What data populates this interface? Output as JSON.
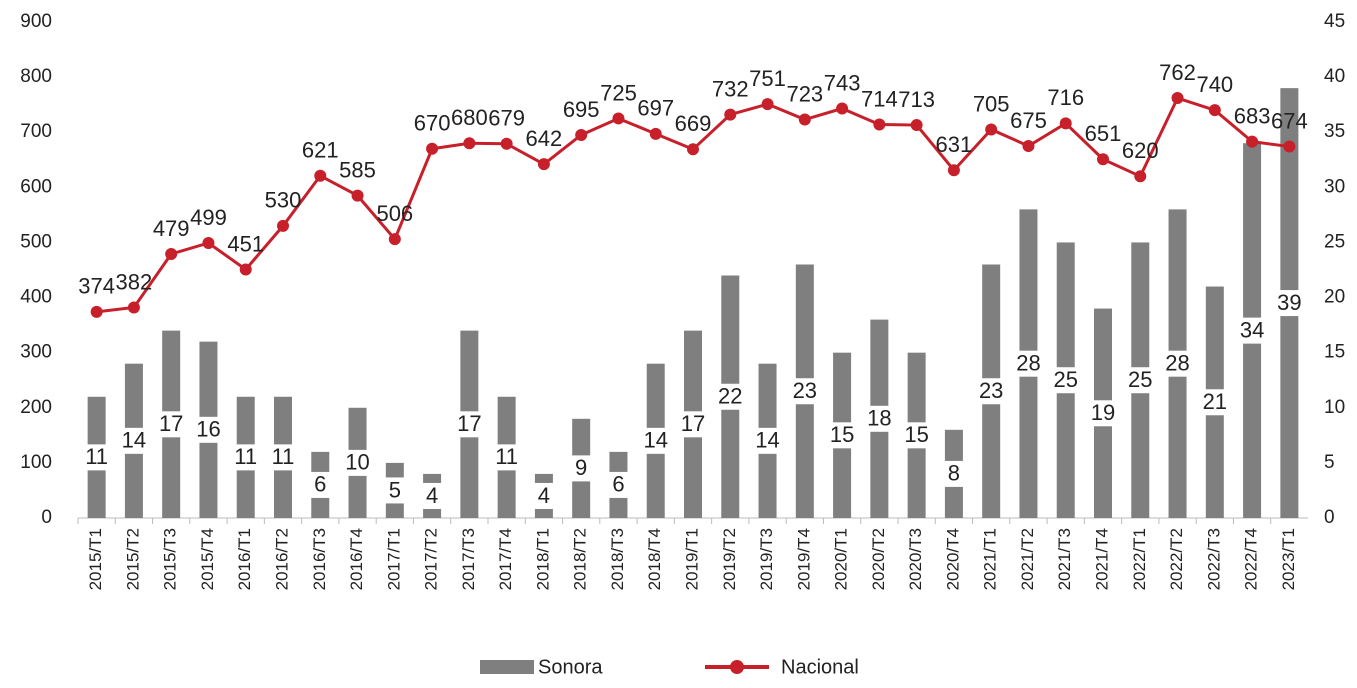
{
  "chart_data": {
    "type": "combo",
    "categories": [
      "2015/T1",
      "2015/T2",
      "2015/T3",
      "2015/T4",
      "2016/T1",
      "2016/T2",
      "2016/T3",
      "2016/T4",
      "2017/T1",
      "2017/T2",
      "2017/T3",
      "2017/T4",
      "2018/T1",
      "2018/T2",
      "2018/T3",
      "2018/T4",
      "2019/T1",
      "2019/T2",
      "2019/T3",
      "2019/T4",
      "2020/T1",
      "2020/T2",
      "2020/T3",
      "2020/T4",
      "2021/T1",
      "2021/T2",
      "2021/T3",
      "2021/T4",
      "2022/T1",
      "2022/T2",
      "2022/T3",
      "2022/T4",
      "2023/T1"
    ],
    "series": [
      {
        "name": "Sonora",
        "type": "bar",
        "axis": "y2",
        "color": "#7f7f7f",
        "values": [
          11,
          14,
          17,
          16,
          11,
          11,
          6,
          10,
          5,
          4,
          17,
          11,
          4,
          9,
          6,
          14,
          17,
          22,
          14,
          23,
          15,
          18,
          15,
          8,
          23,
          28,
          25,
          19,
          25,
          28,
          21,
          34,
          39
        ]
      },
      {
        "name": "Nacional",
        "type": "line",
        "color": "#c8202b",
        "values": [
          374,
          382,
          479,
          499,
          451,
          530,
          621,
          585,
          506,
          670,
          680,
          679,
          642,
          695,
          725,
          697,
          669,
          732,
          751,
          723,
          743,
          714,
          713,
          631,
          705,
          675,
          716,
          651,
          620,
          762,
          740,
          683,
          674
        ]
      }
    ],
    "ylim": [
      0,
      900
    ],
    "yticks": [
      0,
      100,
      200,
      300,
      400,
      500,
      600,
      700,
      800,
      900
    ],
    "y2lim": [
      0,
      45
    ],
    "y2ticks": [
      0,
      5,
      10,
      15,
      20,
      25,
      30,
      35,
      40,
      45
    ],
    "legend": "bottom"
  }
}
